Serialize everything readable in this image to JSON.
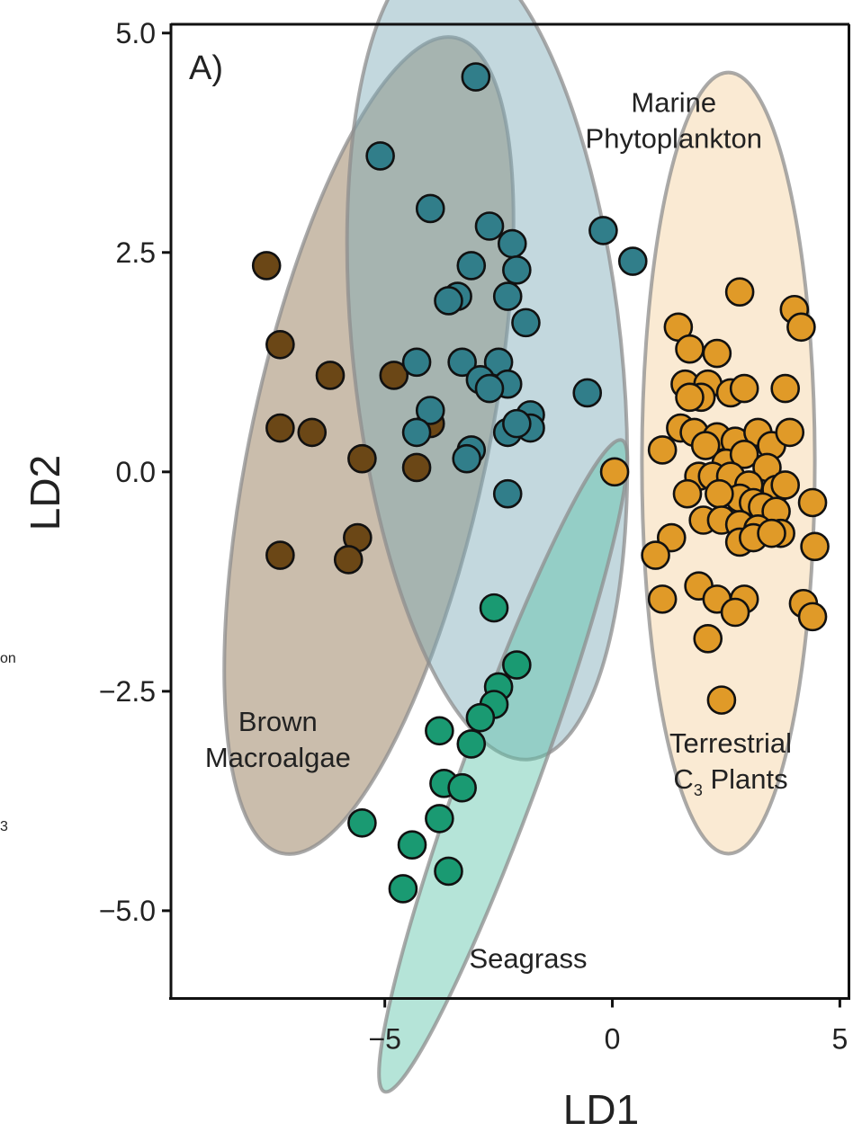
{
  "chart_data": {
    "type": "scatter",
    "panel_label": "A)",
    "xlabel": "LD1",
    "ylabel": "LD2",
    "xlim": [
      -9.7,
      5.2
    ],
    "ylim": [
      -6.0,
      5.1
    ],
    "x_ticks": [
      {
        "value": -5,
        "label": "−5"
      },
      {
        "value": 0,
        "label": "0"
      },
      {
        "value": 5,
        "label": "5"
      }
    ],
    "y_ticks": [
      {
        "value": 5.0,
        "label": "5.0"
      },
      {
        "value": 2.5,
        "label": "2.5"
      },
      {
        "value": 0.0,
        "label": "0.0"
      },
      {
        "value": -2.5,
        "label": "−2.5"
      },
      {
        "value": -5.0,
        "label": "−5.0"
      }
    ],
    "grid": false,
    "edge_text": [
      "on",
      "3"
    ],
    "series": [
      {
        "name": "Brown Macroalgae",
        "label_lines": [
          "Brown",
          "Macroalgae"
        ],
        "label_pos": [
          -7.35,
          -2.95
        ],
        "color": "#6b4716",
        "ellipse": {
          "cx": -5.35,
          "cy": 0.3,
          "rx": 2.6,
          "ry": 4.75,
          "angle_deg": 12,
          "fill": "#8a6d46",
          "opacity": 0.45
        },
        "points": [
          [
            -7.6,
            2.35
          ],
          [
            -7.3,
            1.45
          ],
          [
            -7.3,
            0.5
          ],
          [
            -6.6,
            0.45
          ],
          [
            -6.2,
            1.1
          ],
          [
            -4.8,
            1.1
          ],
          [
            -5.5,
            0.15
          ],
          [
            -7.3,
            -0.95
          ],
          [
            -5.6,
            -0.75
          ],
          [
            -5.8,
            -1.0
          ],
          [
            -4.3,
            0.05
          ],
          [
            -4.0,
            0.55
          ]
        ]
      },
      {
        "name": "Marine Phytoplankton",
        "label_lines": [
          "Marine",
          "Phytoplankton"
        ],
        "label_pos": [
          1.35,
          4.1
        ],
        "color": "#317e8a",
        "ellipse": {
          "cx": -2.75,
          "cy": 1.35,
          "rx": 2.95,
          "ry": 4.65,
          "angle_deg": -6,
          "fill": "#7aa9b5",
          "opacity": 0.45
        },
        "points": [
          [
            -3.0,
            4.5
          ],
          [
            -5.1,
            3.6
          ],
          [
            -4.0,
            3.0
          ],
          [
            -2.7,
            2.8
          ],
          [
            -3.1,
            2.35
          ],
          [
            -2.2,
            2.6
          ],
          [
            -2.1,
            2.3
          ],
          [
            -2.3,
            2.0
          ],
          [
            -3.4,
            2.0
          ],
          [
            -3.6,
            1.95
          ],
          [
            -1.9,
            1.7
          ],
          [
            -3.3,
            1.25
          ],
          [
            -2.5,
            1.25
          ],
          [
            -4.3,
            1.25
          ],
          [
            -2.9,
            1.05
          ],
          [
            -2.3,
            1.0
          ],
          [
            -2.7,
            0.95
          ],
          [
            -4.0,
            0.7
          ],
          [
            -4.3,
            0.45
          ],
          [
            -2.3,
            0.45
          ],
          [
            -1.8,
            0.65
          ],
          [
            -1.8,
            0.5
          ],
          [
            -2.1,
            0.55
          ],
          [
            -3.1,
            0.25
          ],
          [
            -3.2,
            0.15
          ],
          [
            -2.3,
            -0.25
          ],
          [
            -0.2,
            2.75
          ],
          [
            0.45,
            2.4
          ],
          [
            -0.55,
            0.9
          ]
        ]
      },
      {
        "name": "Seagrass",
        "label_lines": [
          "Seagrass"
        ],
        "label_pos": [
          -1.85,
          -5.65
        ],
        "color": "#1a9a72",
        "ellipse": {
          "cx": -2.4,
          "cy": -3.35,
          "rx": 0.85,
          "ry": 3.95,
          "angle_deg": 20,
          "fill": "#5cc4a8",
          "opacity": 0.45
        },
        "points": [
          [
            -2.6,
            -1.55
          ],
          [
            -2.1,
            -2.2
          ],
          [
            -2.5,
            -2.45
          ],
          [
            -2.6,
            -2.65
          ],
          [
            -2.9,
            -2.8
          ],
          [
            -3.8,
            -2.95
          ],
          [
            -3.1,
            -3.1
          ],
          [
            -3.7,
            -3.55
          ],
          [
            -3.3,
            -3.6
          ],
          [
            -3.8,
            -3.95
          ],
          [
            -5.5,
            -4.0
          ],
          [
            -4.4,
            -4.25
          ],
          [
            -3.6,
            -4.55
          ],
          [
            -4.6,
            -4.75
          ]
        ]
      },
      {
        "name": "Terrestrial C3 Plants",
        "label_lines": [
          "Terrestrial",
          "C3 Plants"
        ],
        "label_pos": [
          2.6,
          -3.2
        ],
        "color": "#e09a28",
        "ellipse": {
          "cx": 2.55,
          "cy": 0.1,
          "rx": 1.9,
          "ry": 4.45,
          "angle_deg": 0,
          "fill": "#f5d6a8",
          "opacity": 0.5
        },
        "points": [
          [
            2.8,
            2.05
          ],
          [
            4.0,
            1.85
          ],
          [
            4.15,
            1.65
          ],
          [
            1.45,
            1.65
          ],
          [
            1.7,
            1.4
          ],
          [
            2.3,
            1.35
          ],
          [
            1.6,
            1.0
          ],
          [
            2.1,
            1.0
          ],
          [
            1.95,
            0.85
          ],
          [
            2.6,
            0.9
          ],
          [
            2.9,
            0.95
          ],
          [
            3.8,
            0.95
          ],
          [
            1.7,
            0.85
          ],
          [
            1.5,
            0.5
          ],
          [
            1.8,
            0.45
          ],
          [
            2.3,
            0.4
          ],
          [
            2.7,
            0.35
          ],
          [
            3.2,
            0.45
          ],
          [
            3.5,
            0.3
          ],
          [
            3.9,
            0.45
          ],
          [
            2.05,
            0.3
          ],
          [
            2.5,
            0.1
          ],
          [
            2.9,
            0.2
          ],
          [
            3.4,
            0.05
          ],
          [
            1.1,
            0.25
          ],
          [
            1.9,
            -0.05
          ],
          [
            2.2,
            -0.05
          ],
          [
            2.6,
            -0.05
          ],
          [
            3.0,
            -0.15
          ],
          [
            3.6,
            -0.2
          ],
          [
            3.8,
            -0.15
          ],
          [
            2.8,
            -0.3
          ],
          [
            3.1,
            -0.35
          ],
          [
            1.65,
            -0.25
          ],
          [
            2.35,
            -0.25
          ],
          [
            3.3,
            -0.4
          ],
          [
            3.6,
            -0.45
          ],
          [
            4.4,
            -0.35
          ],
          [
            2.0,
            -0.55
          ],
          [
            2.4,
            -0.55
          ],
          [
            2.8,
            -0.6
          ],
          [
            3.2,
            -0.65
          ],
          [
            3.7,
            -0.7
          ],
          [
            4.45,
            -0.85
          ],
          [
            1.3,
            -0.75
          ],
          [
            0.95,
            -0.95
          ],
          [
            2.8,
            -0.8
          ],
          [
            3.1,
            -0.75
          ],
          [
            3.5,
            -0.7
          ],
          [
            1.9,
            -1.3
          ],
          [
            2.3,
            -1.45
          ],
          [
            2.9,
            -1.45
          ],
          [
            2.7,
            -1.6
          ],
          [
            1.1,
            -1.45
          ],
          [
            4.2,
            -1.5
          ],
          [
            4.4,
            -1.65
          ],
          [
            2.1,
            -1.9
          ],
          [
            2.4,
            -2.6
          ],
          [
            0.05,
            0.0
          ]
        ]
      }
    ]
  }
}
